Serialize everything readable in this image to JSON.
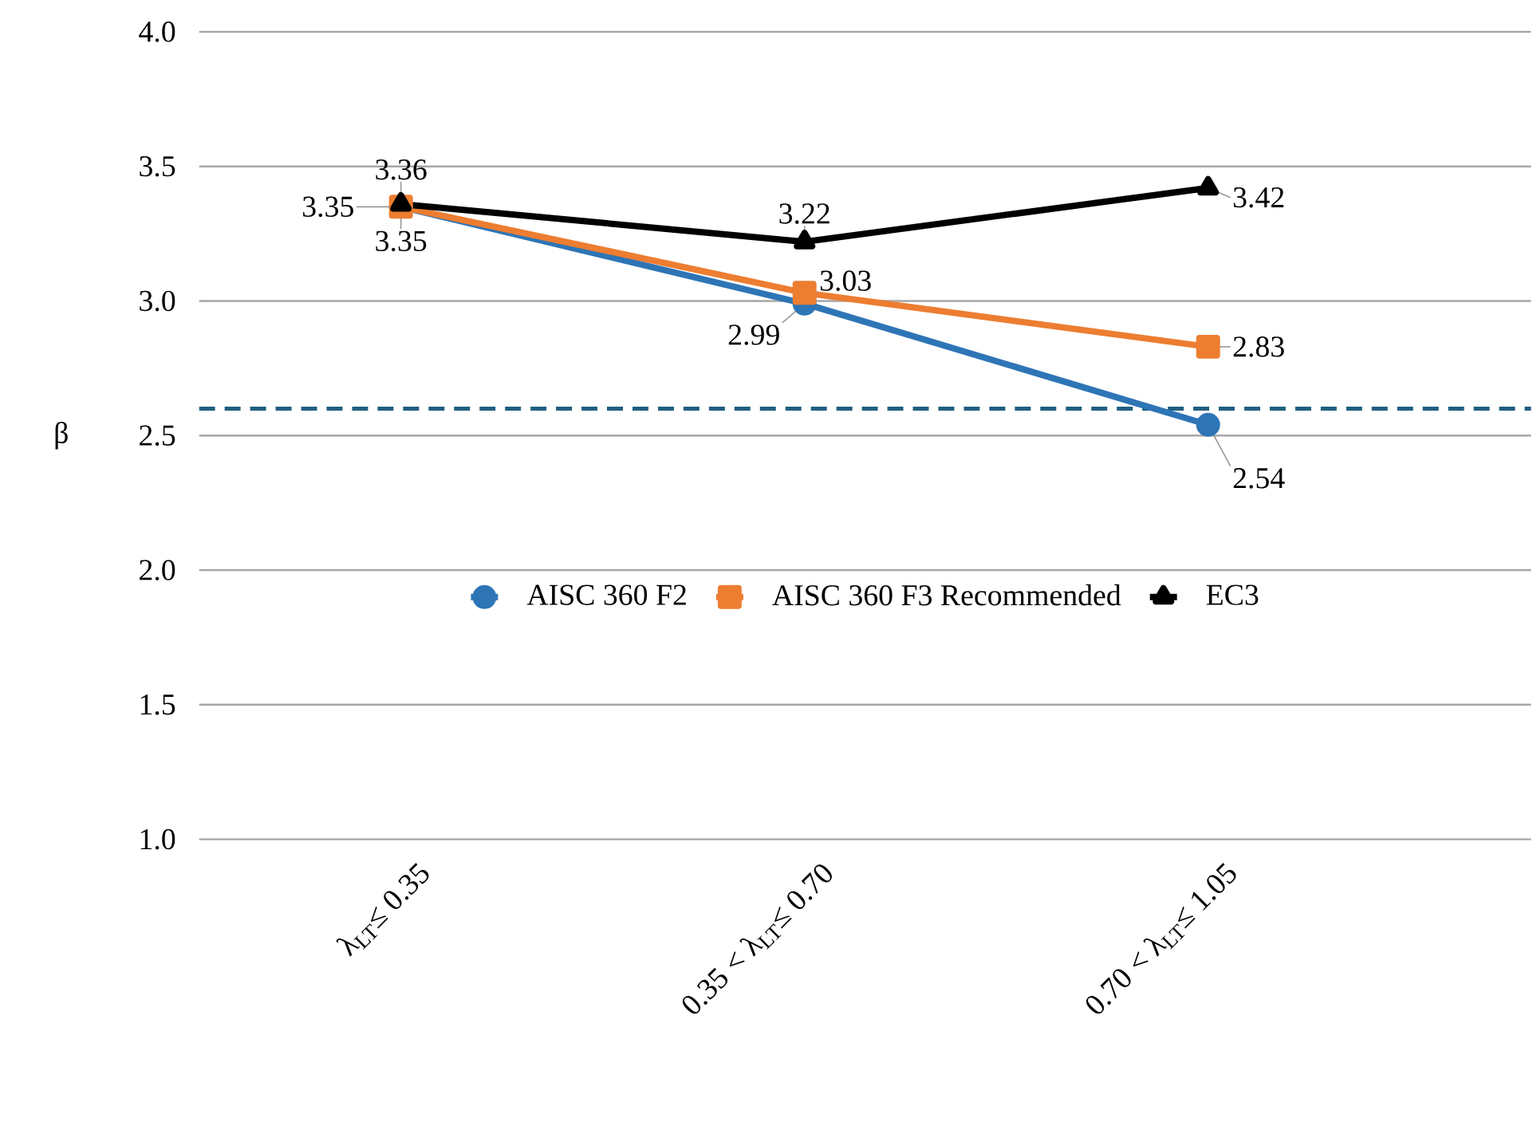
{
  "chart_data": {
    "type": "line",
    "ylabel": "β",
    "categories": [
      "λ$_{LT}$≤ 0.35",
      "0.35 < λ$_{LT}$≤ 0.70",
      "0.70 < λ$_{LT}$≤ 1.05"
    ],
    "series": [
      {
        "name": "AISC 360 F2",
        "color": "#2e75b6",
        "marker": "circle",
        "values": [
          3.35,
          2.99,
          2.54
        ]
      },
      {
        "name": "AISC 360 F3 Recommended",
        "color": "#ed7d31",
        "marker": "square",
        "values": [
          3.35,
          3.03,
          2.83
        ]
      },
      {
        "name": "EC3",
        "color": "#000000",
        "marker": "triangle",
        "values": [
          3.36,
          3.22,
          3.42
        ]
      }
    ],
    "ylim": [
      1.0,
      4.0
    ],
    "yticks": [
      {
        "value": 1.0,
        "label": "1.0"
      },
      {
        "value": 1.5,
        "label": "1.5"
      },
      {
        "value": 2.0,
        "label": "2.0"
      },
      {
        "value": 2.5,
        "label": "2.5"
      },
      {
        "value": 3.0,
        "label": "3.0"
      },
      {
        "value": 3.5,
        "label": "3.5"
      },
      {
        "value": 4.0,
        "label": "4.0"
      }
    ],
    "grid": "y",
    "legend": "center",
    "data_labels": true,
    "line_style": "solid",
    "ref_lines": [
      {
        "axis": "y",
        "value": 2.6,
        "color": "#1f5f7f",
        "line_style": "dashed"
      }
    ]
  }
}
